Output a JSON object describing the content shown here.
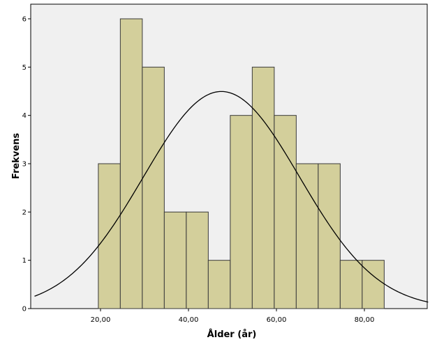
{
  "chart_data": {
    "type": "bar",
    "subtype": "histogram-with-normal-curve",
    "xlabel": "Ålder (år)",
    "ylabel": "Frekvens",
    "x_ticks": [
      20,
      40,
      60,
      80
    ],
    "x_tick_labels": [
      "20,00",
      "40,00",
      "60,00",
      "80,00"
    ],
    "y_ticks": [
      0,
      1,
      2,
      3,
      4,
      5,
      6
    ],
    "y_tick_labels": [
      "0",
      "1",
      "2",
      "3",
      "4",
      "5",
      "6"
    ],
    "xlim": [
      5,
      94.5
    ],
    "ylim": [
      0,
      6.2
    ],
    "bins": [
      {
        "start": 19.5,
        "end": 24.5,
        "count": 3
      },
      {
        "start": 24.5,
        "end": 29.5,
        "count": 6
      },
      {
        "start": 29.5,
        "end": 34.5,
        "count": 5
      },
      {
        "start": 34.5,
        "end": 39.5,
        "count": 2
      },
      {
        "start": 39.5,
        "end": 44.5,
        "count": 2
      },
      {
        "start": 44.5,
        "end": 49.5,
        "count": 1
      },
      {
        "start": 49.5,
        "end": 54.5,
        "count": 4
      },
      {
        "start": 54.5,
        "end": 59.5,
        "count": 5
      },
      {
        "start": 59.5,
        "end": 64.5,
        "count": 4
      },
      {
        "start": 64.5,
        "end": 69.5,
        "count": 3
      },
      {
        "start": 69.5,
        "end": 74.5,
        "count": 3
      },
      {
        "start": 74.5,
        "end": 79.5,
        "count": 1
      },
      {
        "start": 79.5,
        "end": 84.5,
        "count": 1
      }
    ],
    "normal_curve": {
      "mean": 47.5,
      "sd": 17.75,
      "n": 40,
      "bin_width": 5
    },
    "grid": false,
    "colors": {
      "bar_fill": "#d3cf9b",
      "bar_stroke": "#3a3a3a",
      "plot_background": "#f0f0f0",
      "curve": "#000000"
    }
  }
}
